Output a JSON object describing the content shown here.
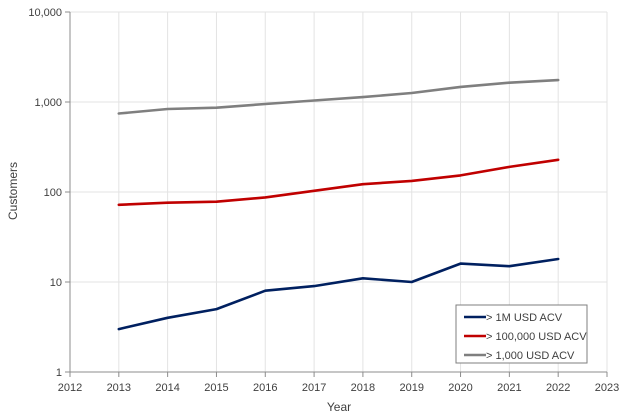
{
  "chart_data": {
    "type": "line",
    "title": "",
    "xlabel": "Year",
    "ylabel": "Customers",
    "yscale": "log",
    "xlim": [
      2012,
      2023
    ],
    "ylim": [
      1,
      10000
    ],
    "grid": true,
    "legend_position": "bottom-right",
    "x_ticks": [
      "2012",
      "2013",
      "2014",
      "2015",
      "2016",
      "2017",
      "2018",
      "2019",
      "2020",
      "2021",
      "2022",
      "2023"
    ],
    "y_ticks": [
      {
        "value": 1,
        "label": "1"
      },
      {
        "value": 10,
        "label": "10"
      },
      {
        "value": 100,
        "label": "100"
      },
      {
        "value": 1000,
        "label": "1,000"
      },
      {
        "value": 10000,
        "label": "10,000"
      }
    ],
    "x": [
      2013,
      2014,
      2015,
      2016,
      2017,
      2018,
      2019,
      2020,
      2021,
      2022
    ],
    "series": [
      {
        "name": "> 1M USD ACV",
        "color": "#002060",
        "values": [
          3,
          4,
          5,
          8,
          9,
          11,
          10,
          16,
          15,
          18
        ]
      },
      {
        "name": "> 100,000 USD ACV",
        "color": "#C00000",
        "values": [
          72,
          76,
          78,
          87,
          103,
          122,
          133,
          153,
          190,
          228
        ]
      },
      {
        "name": "> 1,000 USD ACV",
        "color": "#7F7F7F",
        "values": [
          745,
          835,
          865,
          950,
          1040,
          1135,
          1260,
          1470,
          1640,
          1750
        ]
      }
    ]
  }
}
